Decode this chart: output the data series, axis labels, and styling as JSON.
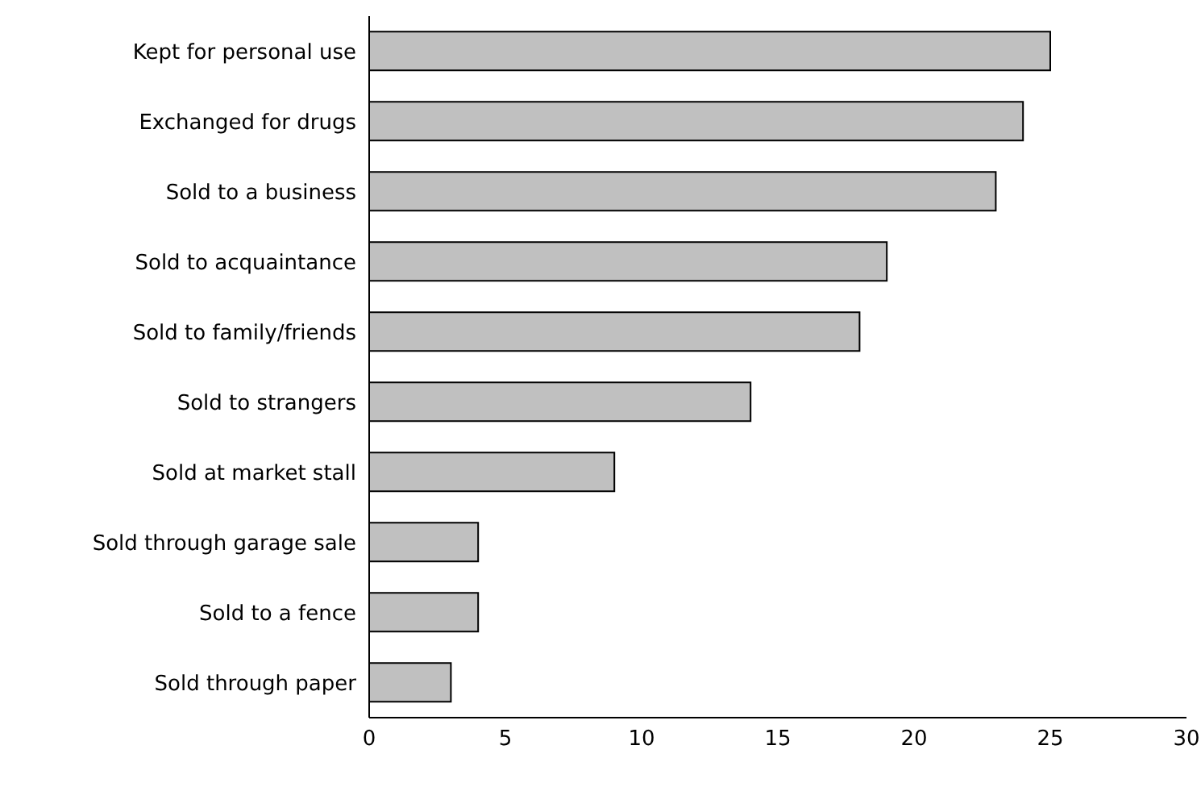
{
  "chart_data": {
    "type": "bar",
    "orientation": "horizontal",
    "categories": [
      "Kept for personal use",
      "Exchanged for drugs",
      "Sold to a business",
      "Sold to acquaintance",
      "Sold to family/friends",
      "Sold to strangers",
      "Sold at market stall",
      "Sold through garage sale",
      "Sold to a fence",
      "Sold through paper"
    ],
    "values": [
      25,
      24,
      23,
      19,
      18,
      14,
      9,
      4,
      4,
      3
    ],
    "color": "#c0c0c0",
    "xlim": [
      0,
      30
    ],
    "xticks": [
      0,
      5,
      10,
      15,
      20,
      25,
      30
    ],
    "grid": false
  }
}
